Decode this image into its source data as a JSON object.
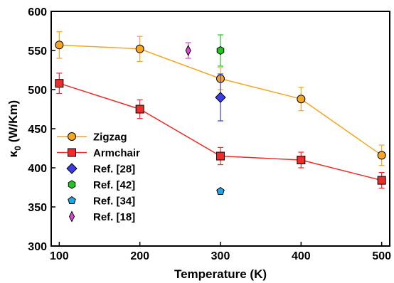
{
  "chart_data": {
    "type": "line",
    "xlabel": "Temperature (K)",
    "ylabel_symbol": "κ",
    "ylabel_sub": "0",
    "ylabel_unit": " (W/Km)",
    "xlim": [
      90,
      510
    ],
    "ylim": [
      300,
      600
    ],
    "xticks": [
      100,
      200,
      300,
      400,
      500
    ],
    "yticks": [
      300,
      350,
      400,
      450,
      500,
      550,
      600
    ],
    "grid": false,
    "legend_position": "bottom-left",
    "series": [
      {
        "name": "Zigzag",
        "marker": "circle",
        "color": "#F5A623",
        "line": true,
        "x": [
          100,
          200,
          300,
          400,
          500
        ],
        "y": [
          557,
          552,
          514,
          488,
          416
        ],
        "err": [
          17,
          16,
          14,
          15,
          13
        ]
      },
      {
        "name": "Armchair",
        "marker": "square",
        "color": "#EE2C2C",
        "line": true,
        "x": [
          100,
          200,
          300,
          400,
          500
        ],
        "y": [
          508,
          475,
          415,
          410,
          384
        ],
        "err": [
          13,
          12,
          11,
          10,
          10
        ]
      },
      {
        "name": "Ref. [28]",
        "marker": "diamond",
        "color": "#3B3BE8",
        "line": false,
        "x": [
          300
        ],
        "y": [
          490
        ],
        "err": [
          30
        ]
      },
      {
        "name": "Ref. [42]",
        "marker": "hexagon",
        "color": "#22C422",
        "line": false,
        "x": [
          300
        ],
        "y": [
          550
        ],
        "err": [
          20
        ]
      },
      {
        "name": "Ref. [34]",
        "marker": "pentagon",
        "color": "#1EA7E8",
        "line": false,
        "x": [
          300
        ],
        "y": [
          370
        ],
        "err": [
          0
        ]
      },
      {
        "name": "Ref. [18]",
        "marker": "thin-diamond",
        "color": "#E046D6",
        "line": false,
        "x": [
          260
        ],
        "y": [
          550
        ],
        "err": [
          10
        ]
      }
    ]
  }
}
